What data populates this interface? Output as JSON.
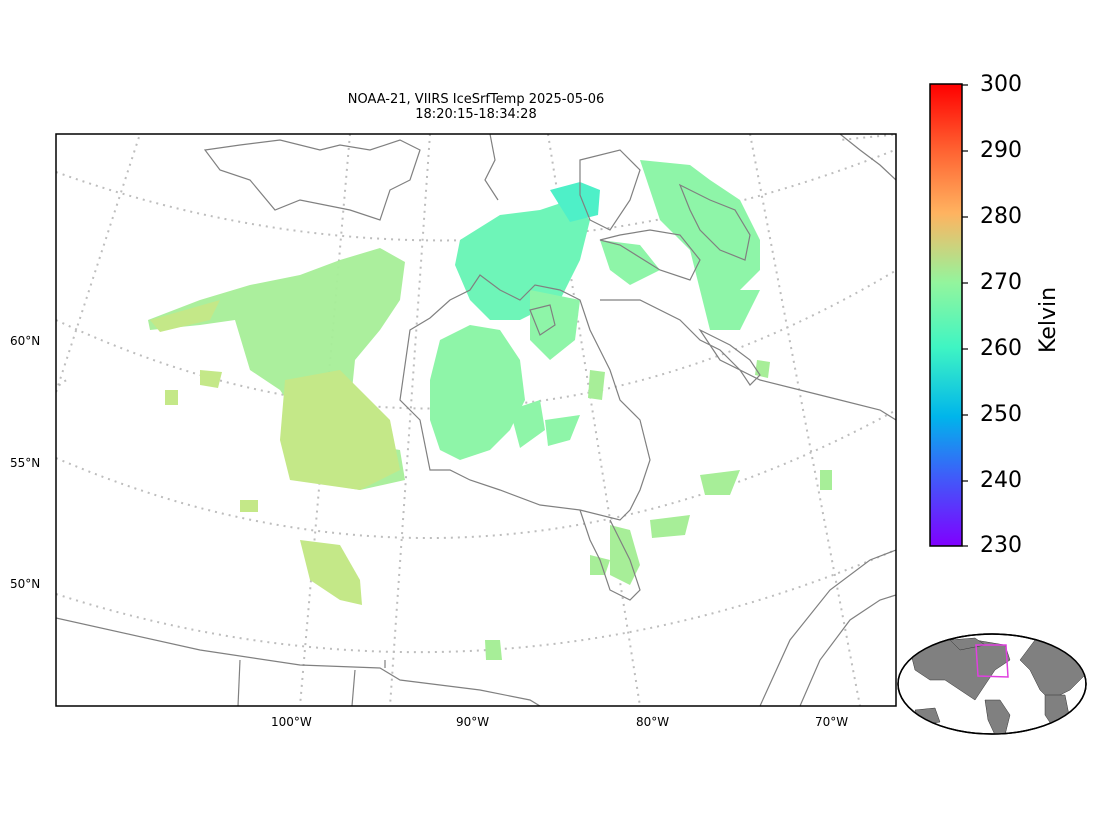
{
  "title": {
    "line1": "NOAA-21, VIIRS IceSrfTemp 2025-05-06",
    "line2": "18:20:15-18:34:28"
  },
  "lat_labels": [
    "60°N",
    "55°N",
    "50°N"
  ],
  "lon_labels": [
    "100°W",
    "90°W",
    "80°W",
    "70°W"
  ],
  "colorbar": {
    "label": "Kelvin",
    "ticks": [
      "300",
      "290",
      "280",
      "270",
      "260",
      "250",
      "240",
      "230"
    ],
    "min": 230,
    "max": 300,
    "colormap": "rainbow"
  },
  "colors": {
    "coastline": "#808080",
    "graticule": "#bdbdbd",
    "inset_land": "#808080",
    "inset_box": "#e040e0"
  },
  "inset": {
    "type": "world-map-locator"
  }
}
